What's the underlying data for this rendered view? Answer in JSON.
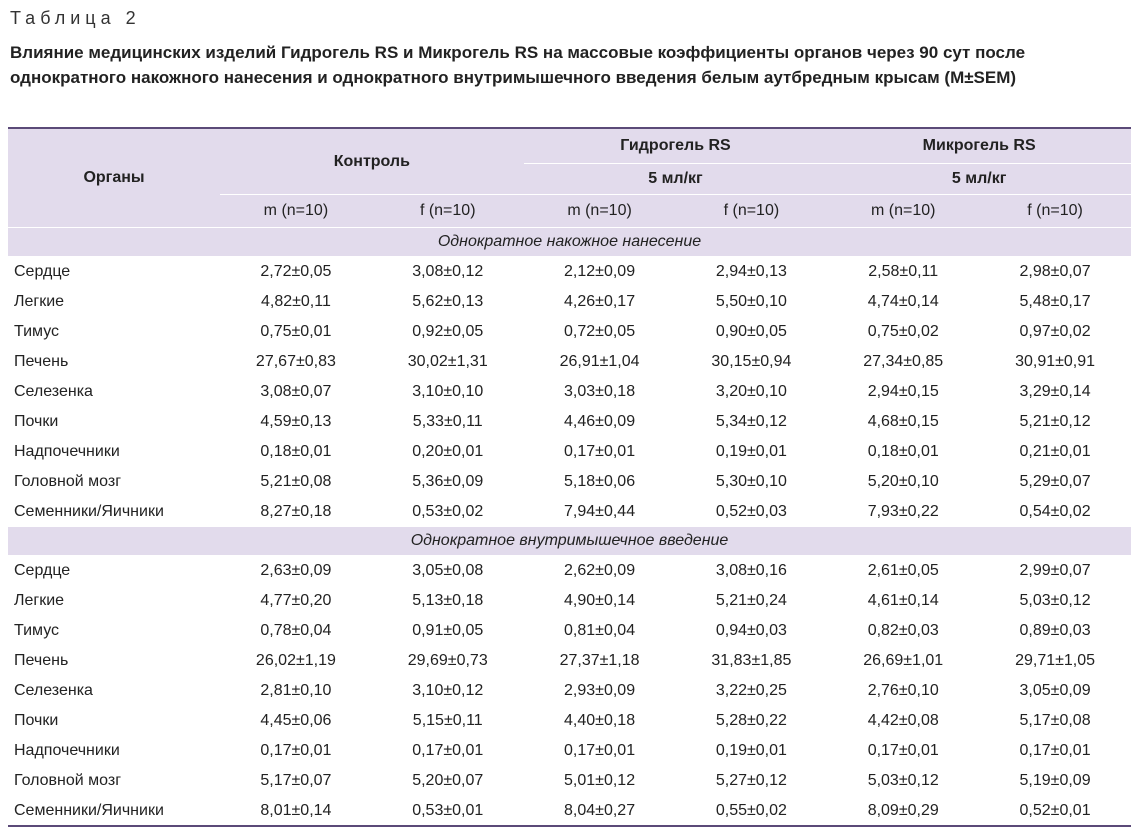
{
  "caption": {
    "label": "Таблица 2",
    "title": "Влияние медицинских изделий Гидрогель RS и Микрогель RS на массовые коэффициенты органов через 90 сут после однократного накожного нанесения и однократного внутримышечного введения белым аутбредным крысам (M±SEM)"
  },
  "header": {
    "organs": "Органы",
    "control": "Контроль",
    "hydrogel": "Гидрогель RS",
    "microgel": "Микрогель RS",
    "dose_hydrogel": "5 мл/кг",
    "dose_microgel": "5 мл/кг",
    "sub": [
      "m (n=10)",
      "f (n=10)",
      "m (n=10)",
      "f (n=10)",
      "m (n=10)",
      "f (n=10)"
    ]
  },
  "sections": [
    {
      "title": "Однократное накожное нанесение",
      "rows": [
        {
          "organ": "Сердце",
          "values": [
            "2,72±0,05",
            "3,08±0,12",
            "2,12±0,09",
            "2,94±0,13",
            "2,58±0,11",
            "2,98±0,07"
          ]
        },
        {
          "organ": "Легкие",
          "values": [
            "4,82±0,11",
            "5,62±0,13",
            "4,26±0,17",
            "5,50±0,10",
            "4,74±0,14",
            "5,48±0,17"
          ]
        },
        {
          "organ": "Тимус",
          "values": [
            "0,75±0,01",
            "0,92±0,05",
            "0,72±0,05",
            "0,90±0,05",
            "0,75±0,02",
            "0,97±0,02"
          ]
        },
        {
          "organ": "Печень",
          "values": [
            "27,67±0,83",
            "30,02±1,31",
            "26,91±1,04",
            "30,15±0,94",
            "27,34±0,85",
            "30,91±0,91"
          ]
        },
        {
          "organ": "Селезенка",
          "values": [
            "3,08±0,07",
            "3,10±0,10",
            "3,03±0,18",
            "3,20±0,10",
            "2,94±0,15",
            "3,29±0,14"
          ]
        },
        {
          "organ": "Почки",
          "values": [
            "4,59±0,13",
            "5,33±0,11",
            "4,46±0,09",
            "5,34±0,12",
            "4,68±0,15",
            "5,21±0,12"
          ]
        },
        {
          "organ": "Надпочечники",
          "values": [
            "0,18±0,01",
            "0,20±0,01",
            "0,17±0,01",
            "0,19±0,01",
            "0,18±0,01",
            "0,21±0,01"
          ]
        },
        {
          "organ": "Головной мозг",
          "values": [
            "5,21±0,08",
            "5,36±0,09",
            "5,18±0,06",
            "5,30±0,10",
            "5,20±0,10",
            "5,29±0,07"
          ]
        },
        {
          "organ": "Семенники/Яичники",
          "values": [
            "8,27±0,18",
            "0,53±0,02",
            "7,94±0,44",
            "0,52±0,03",
            "7,93±0,22",
            "0,54±0,02"
          ]
        }
      ]
    },
    {
      "title": "Однократное внутримышечное введение",
      "rows": [
        {
          "organ": "Сердце",
          "values": [
            "2,63±0,09",
            "3,05±0,08",
            "2,62±0,09",
            "3,08±0,16",
            "2,61±0,05",
            "2,99±0,07"
          ]
        },
        {
          "organ": "Легкие",
          "values": [
            "4,77±0,20",
            "5,13±0,18",
            "4,90±0,14",
            "5,21±0,24",
            "4,61±0,14",
            "5,03±0,12"
          ]
        },
        {
          "organ": "Тимус",
          "values": [
            "0,78±0,04",
            "0,91±0,05",
            "0,81±0,04",
            "0,94±0,03",
            "0,82±0,03",
            "0,89±0,03"
          ]
        },
        {
          "organ": "Печень",
          "values": [
            "26,02±1,19",
            "29,69±0,73",
            "27,37±1,18",
            "31,83±1,85",
            "26,69±1,01",
            "29,71±1,05"
          ]
        },
        {
          "organ": "Селезенка",
          "values": [
            "2,81±0,10",
            "3,10±0,12",
            "2,93±0,09",
            "3,22±0,25",
            "2,76±0,10",
            "3,05±0,09"
          ]
        },
        {
          "organ": "Почки",
          "values": [
            "4,45±0,06",
            "5,15±0,11",
            "4,40±0,18",
            "5,28±0,22",
            "4,42±0,08",
            "5,17±0,08"
          ]
        },
        {
          "organ": "Надпочечники",
          "values": [
            "0,17±0,01",
            "0,17±0,01",
            "0,17±0,01",
            "0,19±0,01",
            "0,17±0,01",
            "0,17±0,01"
          ]
        },
        {
          "organ": "Головной мозг",
          "values": [
            "5,17±0,07",
            "5,20±0,07",
            "5,01±0,12",
            "5,27±0,12",
            "5,03±0,12",
            "5,19±0,09"
          ]
        },
        {
          "organ": "Семенники/Яичники",
          "values": [
            "8,01±0,14",
            "0,53±0,01",
            "8,04±0,27",
            "0,55±0,02",
            "8,09±0,29",
            "0,52±0,01"
          ]
        }
      ]
    }
  ],
  "colors": {
    "header_fill": "#e2dbec",
    "rule": "#5b4a78"
  }
}
